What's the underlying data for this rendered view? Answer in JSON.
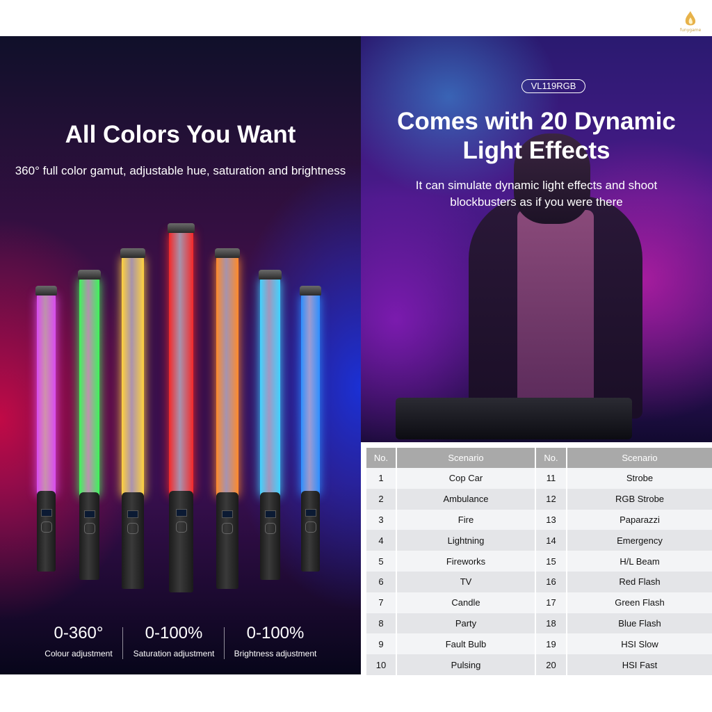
{
  "brand": {
    "logo_text": "funygame"
  },
  "left": {
    "title": "All Colors You Want",
    "subtitle": "360° full color gamut, adjustable hue, saturation and brightness",
    "wand_colors": [
      "#d94cf0",
      "#3df55a",
      "#ffd23d",
      "#f52828",
      "#ff8a2a",
      "#3fd3ff",
      "#2d8fff"
    ],
    "stats": [
      {
        "value": "0-360°",
        "label": "Colour adjustment"
      },
      {
        "value": "0-100%",
        "label": "Saturation adjustment"
      },
      {
        "value": "0-100%",
        "label": "Brightness adjustment"
      }
    ]
  },
  "right": {
    "model_tag": "VL119RGB",
    "title_line1": "Comes with 20 Dynamic",
    "title_line2": "Light Effects",
    "subtitle_line1": "It can simulate dynamic light effects and shoot",
    "subtitle_line2": "blockbusters as if you were there"
  },
  "table": {
    "headers": [
      "No.",
      "Scenario",
      "No.",
      "Scenario"
    ],
    "rows": [
      [
        "1",
        "Cop Car",
        "11",
        "Strobe"
      ],
      [
        "2",
        "Ambulance",
        "12",
        "RGB Strobe"
      ],
      [
        "3",
        "Fire",
        "13",
        "Paparazzi"
      ],
      [
        "4",
        "Lightning",
        "14",
        "Emergency"
      ],
      [
        "5",
        "Fireworks",
        "15",
        "H/L Beam"
      ],
      [
        "6",
        "TV",
        "16",
        "Red Flash"
      ],
      [
        "7",
        "Candle",
        "17",
        "Green Flash"
      ],
      [
        "8",
        "Party",
        "18",
        "Blue Flash"
      ],
      [
        "9",
        "Fault Bulb",
        "19",
        "HSI Slow"
      ],
      [
        "10",
        "Pulsing",
        "20",
        "HSI Fast"
      ]
    ]
  }
}
